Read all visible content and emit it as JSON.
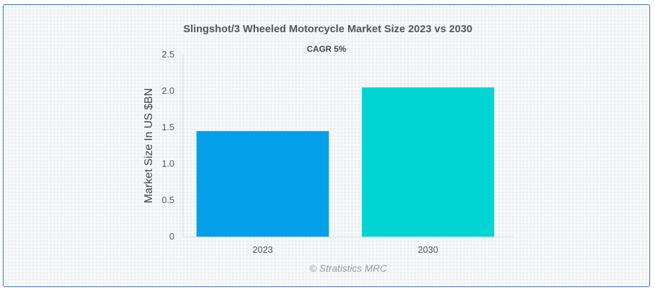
{
  "chart_data": {
    "type": "bar",
    "title": "Slingshot/3 Wheeled Motorcycle Market Size 2023 vs 2030",
    "subtitle": "CAGR 5%",
    "categories": [
      "2023",
      "2030"
    ],
    "values": [
      1.45,
      2.05
    ],
    "colors": [
      "#039fe8",
      "#00d5d3"
    ],
    "xlabel": "",
    "ylabel": "Market Size In US $BN",
    "ylim": [
      0,
      2.5
    ],
    "yticks": [
      0,
      0.5,
      1.0,
      1.5,
      2.0,
      2.5
    ],
    "ytick_labels": [
      "0",
      "0.5",
      "1.0",
      "1.5",
      "2.0",
      "2.5"
    ],
    "grid": false,
    "legend": "none"
  },
  "credit": "© Stratistics MRC"
}
